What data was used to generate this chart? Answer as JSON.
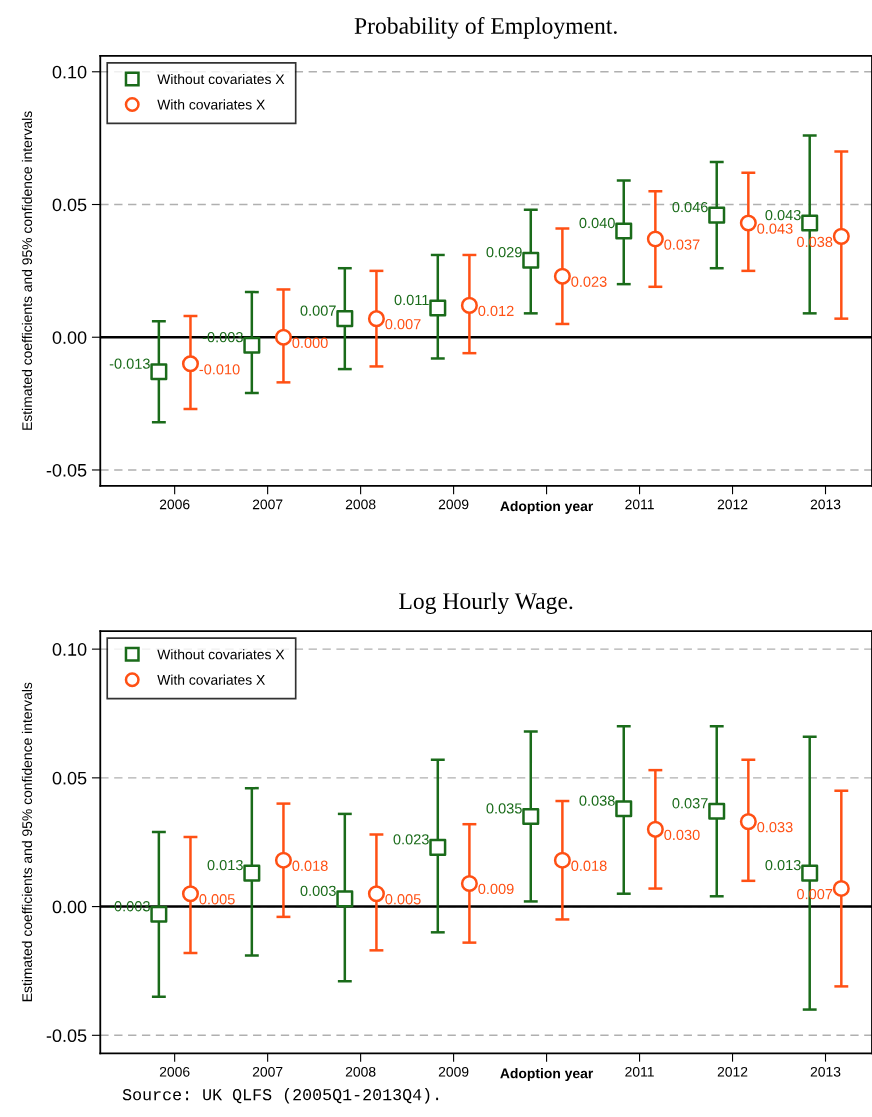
{
  "chart_data": [
    {
      "type": "scatter",
      "title": "Probability of Employment.",
      "ylabel": "Estimated coefficients and 95% confidence intervals",
      "xlabel": "Adoption year",
      "categories": [
        "2006",
        "2007",
        "2008",
        "2009",
        null,
        "2011",
        "2012",
        "2013"
      ],
      "series": [
        {
          "name": "Without covariates X",
          "color": "#1a6b1a",
          "marker": "square",
          "values": [
            -0.013,
            -0.003,
            0.007,
            0.011,
            0.029,
            0.04,
            0.046,
            0.043
          ],
          "value_labels": [
            "-0.013",
            "-0.003",
            "0.007",
            "0.011",
            "0.029",
            "0.040",
            "0.046",
            "0.043"
          ],
          "errors": [
            [
              -0.032,
              0.006
            ],
            [
              -0.021,
              0.017
            ],
            [
              -0.012,
              0.026
            ],
            [
              -0.008,
              0.031
            ],
            [
              0.009,
              0.048
            ],
            [
              0.02,
              0.059
            ],
            [
              0.026,
              0.066
            ],
            [
              0.009,
              0.076
            ]
          ]
        },
        {
          "name": "With covariates X",
          "color": "#ff5014",
          "marker": "circle",
          "values": [
            -0.01,
            0.0,
            0.007,
            0.012,
            0.023,
            0.037,
            0.043,
            0.038
          ],
          "value_labels": [
            "-0.010",
            "0.000",
            "0.007",
            "0.012",
            "0.023",
            "0.037",
            "0.043",
            "0.038"
          ],
          "errors": [
            [
              -0.027,
              0.008
            ],
            [
              -0.017,
              0.018
            ],
            [
              -0.011,
              0.025
            ],
            [
              -0.006,
              0.031
            ],
            [
              0.005,
              0.041
            ],
            [
              0.019,
              0.055
            ],
            [
              0.025,
              0.062
            ],
            [
              0.007,
              0.07
            ]
          ]
        }
      ],
      "ylim": [
        -0.056,
        0.106
      ],
      "yticks": [
        {
          "value": -0.05,
          "label": "-0.05"
        },
        {
          "value": 0,
          "label": "0.00"
        },
        {
          "value": 0.05,
          "label": "0.05"
        },
        {
          "value": 0.1,
          "label": "0.10"
        }
      ],
      "grid": "y",
      "legend": "top left",
      "ref_lines": [
        {
          "axis": "y",
          "value": 0,
          "color": "#000000"
        }
      ]
    },
    {
      "type": "scatter",
      "title": "Log Hourly Wage.",
      "ylabel": "Estimated coefficients and 95% confidence intervals",
      "xlabel": "Adoption year",
      "categories": [
        "2006",
        "2007",
        "2008",
        "2009",
        null,
        "2011",
        "2012",
        "2013"
      ],
      "series": [
        {
          "name": "Without covariates X",
          "color": "#1a6b1a",
          "marker": "square",
          "values": [
            -0.003,
            0.013,
            0.003,
            0.023,
            0.035,
            0.038,
            0.037,
            0.013
          ],
          "value_labels": [
            "-0.003",
            "0.013",
            "0.003",
            "0.023",
            "0.035",
            "0.038",
            "0.037",
            "0.013"
          ],
          "errors": [
            [
              -0.035,
              0.029
            ],
            [
              -0.019,
              0.046
            ],
            [
              -0.029,
              0.036
            ],
            [
              -0.01,
              0.057
            ],
            [
              0.002,
              0.068
            ],
            [
              0.005,
              0.07
            ],
            [
              0.004,
              0.07
            ],
            [
              -0.04,
              0.066
            ]
          ]
        },
        {
          "name": "With covariates X",
          "color": "#ff5014",
          "marker": "circle",
          "values": [
            0.005,
            0.018,
            0.005,
            0.009,
            0.018,
            0.03,
            0.033,
            0.007
          ],
          "value_labels": [
            "0.005",
            "0.018",
            "0.005",
            "0.009",
            "0.018",
            "0.030",
            "0.033",
            "0.007"
          ],
          "errors": [
            [
              -0.018,
              0.027
            ],
            [
              -0.004,
              0.04
            ],
            [
              -0.017,
              0.028
            ],
            [
              -0.014,
              0.032
            ],
            [
              -0.005,
              0.041
            ],
            [
              0.007,
              0.053
            ],
            [
              0.01,
              0.057
            ],
            [
              -0.031,
              0.045
            ]
          ]
        }
      ],
      "ylim": [
        -0.057,
        0.107
      ],
      "yticks": [
        {
          "value": -0.05,
          "label": "-0.05"
        },
        {
          "value": 0,
          "label": "0.00"
        },
        {
          "value": 0.05,
          "label": "0.05"
        },
        {
          "value": 0.1,
          "label": "0.10"
        }
      ],
      "grid": "y",
      "legend": "top left",
      "ref_lines": [
        {
          "axis": "y",
          "value": 0,
          "color": "#000000"
        }
      ],
      "annotations": [
        "Source: UK QLFS (2005Q1-2013Q4)."
      ]
    }
  ]
}
